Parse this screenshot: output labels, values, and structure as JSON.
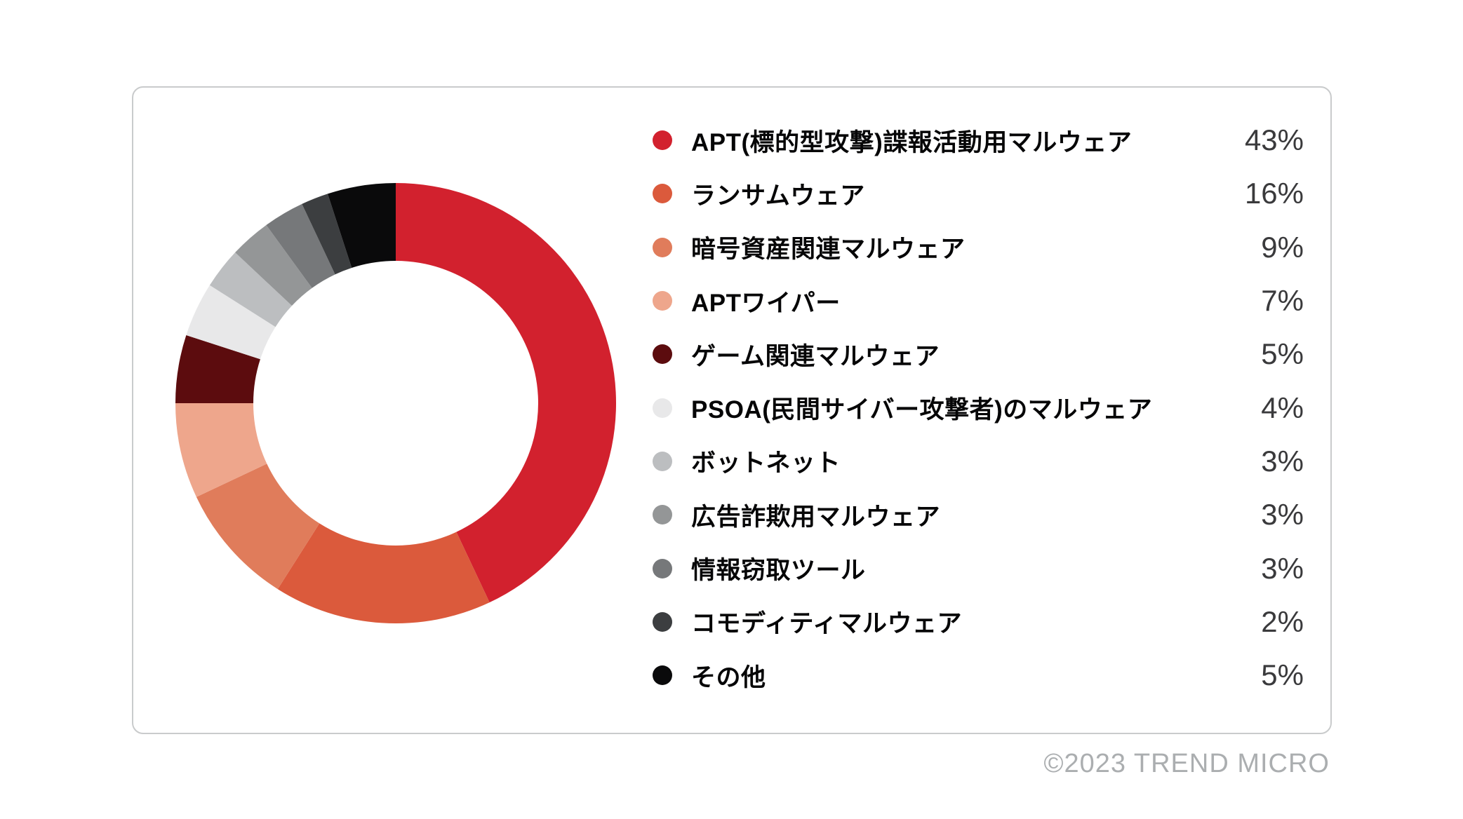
{
  "chart_data": {
    "type": "pie",
    "subtype": "donut",
    "inner_radius_ratio": 0.646,
    "start_angle_deg": -90,
    "direction": "clockwise",
    "legend_position": "right",
    "unit": "%",
    "categories": [
      "APT(標的型攻撃)諜報活動用マルウェア",
      "ランサムウェア",
      "暗号資産関連マルウェア",
      "APTワイパー",
      "ゲーム関連マルウェア",
      "PSOA(民間サイバー攻撃者)のマルウェア",
      "ボットネット",
      "広告詐欺用マルウェア",
      "情報窃取ツール",
      "コモディティマルウェア",
      "その他"
    ],
    "values": [
      43,
      16,
      9,
      7,
      5,
      4,
      3,
      3,
      3,
      2,
      5
    ],
    "value_labels": [
      "43%",
      "16%",
      "9%",
      "7%",
      "5%",
      "4%",
      "3%",
      "3%",
      "3%",
      "2%",
      "5%"
    ],
    "colors": [
      "#d2212e",
      "#db5a3c",
      "#e07c5b",
      "#eea68c",
      "#5c0c0e",
      "#e8e8e9",
      "#bcbec0",
      "#949697",
      "#76787a",
      "#3c3e40",
      "#0a0a0b"
    ]
  },
  "footer": {
    "copyright": "©2023 TREND MICRO"
  }
}
